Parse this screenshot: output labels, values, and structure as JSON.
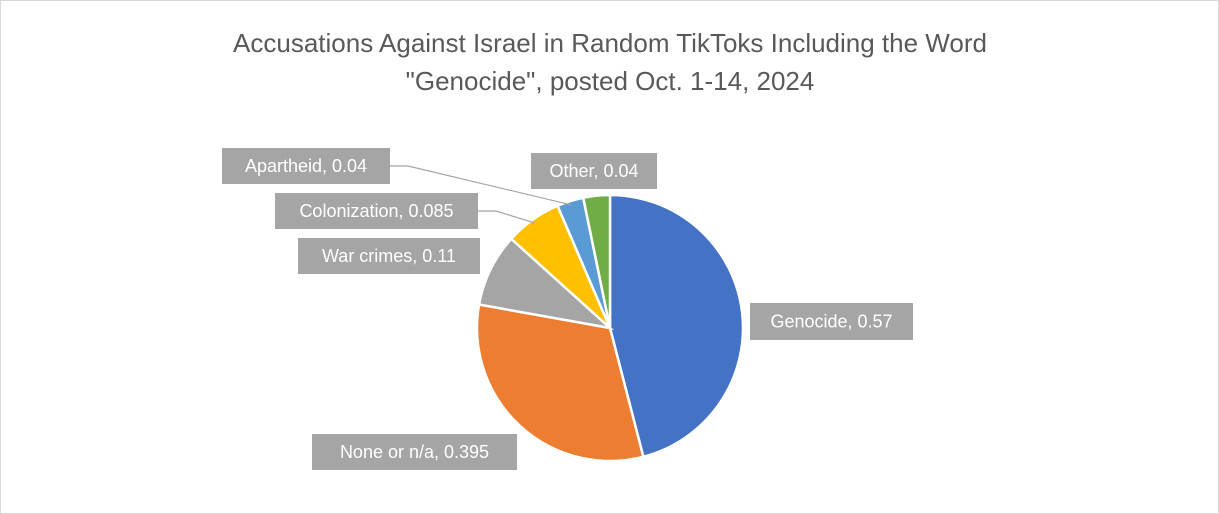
{
  "chart_data": {
    "type": "pie",
    "title": "Accusations Against Israel in Random TikToks Including the Word \"Genocide\", posted Oct. 1-14, 2024",
    "categories": [
      "Genocide",
      "None or n/a",
      "War crimes",
      "Colonization",
      "Apartheid",
      "Other"
    ],
    "values": [
      0.57,
      0.395,
      0.11,
      0.085,
      0.04,
      0.04
    ],
    "value_labels": [
      "Genocide, 0.57",
      "None or n/a, 0.395",
      "War crimes, 0.11",
      "Colonization, 0.085",
      "Apartheid, 0.04",
      "Other, 0.04"
    ],
    "colors": [
      "#4472c4",
      "#ed7d31",
      "#a5a5a5",
      "#ffc000",
      "#5b9bd5",
      "#70ad47"
    ]
  }
}
